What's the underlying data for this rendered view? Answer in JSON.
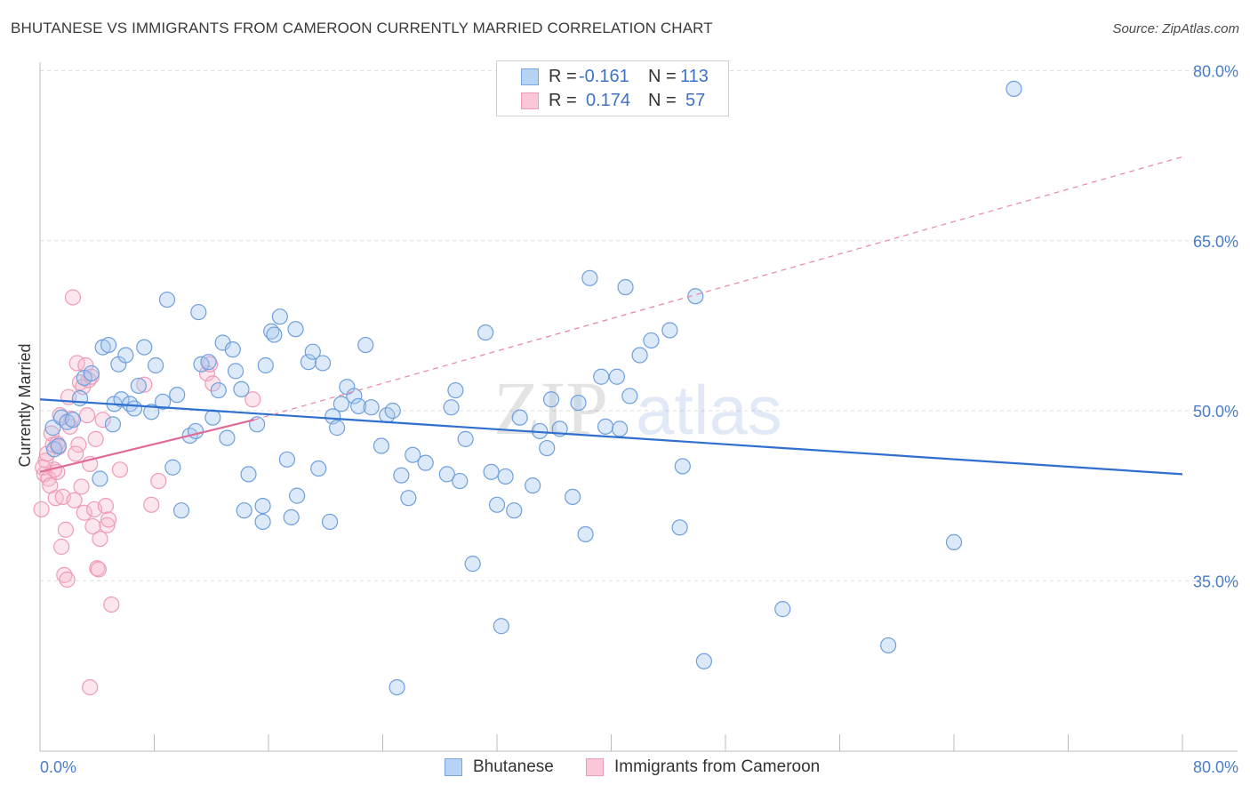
{
  "header": {
    "title": "BHUTANESE VS IMMIGRANTS FROM CAMEROON CURRENTLY MARRIED CORRELATION CHART",
    "source": "Source: ZipAtlas.com"
  },
  "watermark": {
    "zip": "ZIP",
    "atlas": "atlas"
  },
  "legend": {
    "rows": [
      {
        "r_label": "R =",
        "r_value": "-0.161",
        "n_label": "N =",
        "n_value": "113",
        "color": "#a8c8f0"
      },
      {
        "r_label": "R =",
        "r_value": "0.174",
        "n_label": "N =",
        "n_value": "57",
        "color": "#f7b6cb"
      }
    ]
  },
  "bottom_legend": {
    "items": [
      {
        "label": "Bhutanese",
        "color": "#a8c8f0"
      },
      {
        "label": "Immigrants from Cameroon",
        "color": "#f7b6cb"
      }
    ]
  },
  "chart_data": {
    "type": "scatter",
    "title": "BHUTANESE VS IMMIGRANTS FROM CAMEROON CURRENTLY MARRIED CORRELATION CHART",
    "xlabel": "",
    "ylabel": "Currently Married",
    "xlim": [
      0,
      80
    ],
    "ylim": [
      22.5,
      83
    ],
    "x_tick_labels": [
      "0.0%",
      "80.0%"
    ],
    "y_ticks": [
      35,
      50,
      65,
      80
    ],
    "y_tick_labels": [
      "35.0%",
      "50.0%",
      "65.0%",
      "80.0%"
    ],
    "grid": true,
    "legend_position": "top-center",
    "colors": {
      "blue": "#6fa0e0",
      "blue_line": "#2f6fcf",
      "pink": "#f09bb8",
      "pink_line": "#e06a98"
    },
    "series": [
      {
        "name": "Bhutanese",
        "color": "#a8c8f0",
        "trend": {
          "x": [
            0,
            80
          ],
          "y": [
            51.0,
            44.4
          ],
          "style": "solid"
        },
        "points": [
          [
            68.2,
            78.4
          ],
          [
            0.9,
            48.5
          ],
          [
            1.0,
            46.6
          ],
          [
            1.3,
            46.9
          ],
          [
            1.5,
            49.4
          ],
          [
            1.9,
            49.0
          ],
          [
            2.3,
            49.2
          ],
          [
            2.8,
            51.1
          ],
          [
            3.1,
            52.9
          ],
          [
            3.6,
            53.3
          ],
          [
            4.2,
            44.0
          ],
          [
            4.4,
            55.6
          ],
          [
            4.8,
            55.8
          ],
          [
            5.1,
            48.8
          ],
          [
            5.2,
            50.6
          ],
          [
            5.5,
            54.1
          ],
          [
            5.7,
            51.0
          ],
          [
            6.0,
            54.9
          ],
          [
            6.3,
            50.6
          ],
          [
            6.6,
            50.2
          ],
          [
            6.9,
            52.2
          ],
          [
            7.3,
            55.6
          ],
          [
            7.8,
            49.9
          ],
          [
            8.1,
            54.0
          ],
          [
            8.6,
            50.8
          ],
          [
            8.9,
            59.8
          ],
          [
            9.3,
            45.0
          ],
          [
            9.6,
            51.4
          ],
          [
            9.9,
            41.2
          ],
          [
            10.5,
            47.8
          ],
          [
            10.9,
            48.2
          ],
          [
            11.1,
            58.7
          ],
          [
            11.3,
            54.1
          ],
          [
            11.8,
            54.3
          ],
          [
            12.1,
            49.4
          ],
          [
            12.5,
            51.8
          ],
          [
            12.8,
            56.0
          ],
          [
            13.1,
            47.6
          ],
          [
            13.5,
            55.4
          ],
          [
            13.7,
            53.5
          ],
          [
            14.1,
            51.9
          ],
          [
            14.3,
            41.2
          ],
          [
            14.6,
            44.4
          ],
          [
            15.2,
            48.8
          ],
          [
            15.6,
            40.2
          ],
          [
            15.8,
            54.0
          ],
          [
            16.2,
            57.0
          ],
          [
            16.4,
            56.7
          ],
          [
            16.8,
            58.3
          ],
          [
            17.3,
            45.7
          ],
          [
            17.6,
            40.6
          ],
          [
            17.9,
            57.2
          ],
          [
            18.0,
            42.5
          ],
          [
            18.8,
            54.3
          ],
          [
            19.1,
            55.2
          ],
          [
            19.5,
            44.9
          ],
          [
            19.8,
            54.2
          ],
          [
            20.3,
            40.2
          ],
          [
            20.5,
            49.5
          ],
          [
            20.8,
            48.5
          ],
          [
            21.1,
            50.6
          ],
          [
            21.5,
            52.1
          ],
          [
            22.0,
            51.3
          ],
          [
            22.3,
            50.4
          ],
          [
            22.8,
            55.8
          ],
          [
            23.2,
            50.3
          ],
          [
            23.9,
            46.9
          ],
          [
            24.3,
            49.6
          ],
          [
            24.7,
            50.0
          ],
          [
            25.0,
            25.6
          ],
          [
            25.3,
            44.3
          ],
          [
            25.8,
            42.3
          ],
          [
            26.1,
            46.1
          ],
          [
            27.0,
            45.4
          ],
          [
            28.5,
            44.4
          ],
          [
            28.8,
            50.3
          ],
          [
            29.1,
            51.8
          ],
          [
            29.4,
            43.8
          ],
          [
            29.8,
            47.5
          ],
          [
            30.3,
            36.5
          ],
          [
            31.2,
            56.9
          ],
          [
            31.6,
            44.6
          ],
          [
            32.0,
            41.7
          ],
          [
            32.3,
            31.0
          ],
          [
            32.6,
            44.2
          ],
          [
            33.2,
            41.2
          ],
          [
            33.6,
            49.4
          ],
          [
            34.5,
            43.4
          ],
          [
            35.0,
            48.2
          ],
          [
            35.5,
            46.7
          ],
          [
            35.8,
            51.0
          ],
          [
            36.4,
            48.4
          ],
          [
            37.3,
            42.4
          ],
          [
            37.7,
            50.7
          ],
          [
            38.2,
            39.1
          ],
          [
            38.5,
            61.7
          ],
          [
            39.3,
            53.0
          ],
          [
            39.6,
            48.6
          ],
          [
            40.4,
            53.0
          ],
          [
            40.6,
            48.4
          ],
          [
            41.0,
            60.9
          ],
          [
            41.3,
            51.3
          ],
          [
            42.0,
            54.9
          ],
          [
            42.8,
            56.2
          ],
          [
            44.1,
            57.1
          ],
          [
            44.8,
            39.7
          ],
          [
            45.0,
            45.1
          ],
          [
            45.9,
            60.1
          ],
          [
            46.5,
            27.9
          ],
          [
            52.0,
            32.5
          ],
          [
            59.4,
            29.3
          ],
          [
            64.0,
            38.4
          ],
          [
            15.6,
            41.6
          ]
        ]
      },
      {
        "name": "Immigrants from Cameroon",
        "color": "#f7b6cb",
        "trend": {
          "x": [
            0,
            15
          ],
          "y": [
            44.6,
            49.2
          ],
          "style": "solid",
          "extension": {
            "x": [
              15,
              80
            ],
            "y": [
              49.2,
              72.4
            ],
            "style": "dashed"
          }
        },
        "points": [
          [
            0.1,
            41.3
          ],
          [
            0.3,
            44.4
          ],
          [
            0.4,
            45.6
          ],
          [
            0.5,
            46.2
          ],
          [
            0.6,
            44.0
          ],
          [
            0.7,
            43.4
          ],
          [
            0.9,
            47.0
          ],
          [
            1.1,
            42.3
          ],
          [
            1.2,
            44.6
          ],
          [
            1.3,
            46.8
          ],
          [
            1.5,
            38.0
          ],
          [
            1.6,
            42.4
          ],
          [
            1.7,
            35.5
          ],
          [
            1.8,
            39.5
          ],
          [
            1.9,
            35.1
          ],
          [
            2.0,
            51.2
          ],
          [
            2.1,
            48.6
          ],
          [
            2.2,
            49.3
          ],
          [
            2.3,
            60.0
          ],
          [
            2.4,
            42.1
          ],
          [
            2.6,
            54.2
          ],
          [
            2.7,
            47.0
          ],
          [
            2.8,
            52.5
          ],
          [
            2.9,
            43.3
          ],
          [
            3.0,
            52.1
          ],
          [
            3.1,
            41.0
          ],
          [
            3.2,
            54.0
          ],
          [
            3.3,
            49.6
          ],
          [
            3.4,
            52.7
          ],
          [
            3.5,
            45.3
          ],
          [
            3.6,
            53.0
          ],
          [
            3.7,
            39.8
          ],
          [
            3.8,
            41.3
          ],
          [
            3.9,
            47.5
          ],
          [
            4.0,
            36.1
          ],
          [
            4.1,
            36.0
          ],
          [
            4.2,
            38.7
          ],
          [
            4.4,
            49.2
          ],
          [
            4.6,
            41.6
          ],
          [
            4.7,
            39.9
          ],
          [
            4.8,
            40.4
          ],
          [
            5.0,
            32.9
          ],
          [
            5.6,
            44.8
          ],
          [
            7.3,
            52.3
          ],
          [
            7.8,
            41.7
          ],
          [
            8.3,
            43.8
          ],
          [
            11.7,
            53.3
          ],
          [
            11.9,
            54.1
          ],
          [
            12.1,
            52.4
          ],
          [
            14.9,
            51.0
          ],
          [
            1.0,
            44.8
          ],
          [
            0.8,
            48.0
          ],
          [
            0.2,
            45.0
          ],
          [
            3.5,
            25.6
          ],
          [
            2.5,
            46.2
          ],
          [
            1.4,
            49.6
          ],
          [
            1.2,
            47.1
          ]
        ]
      }
    ]
  }
}
